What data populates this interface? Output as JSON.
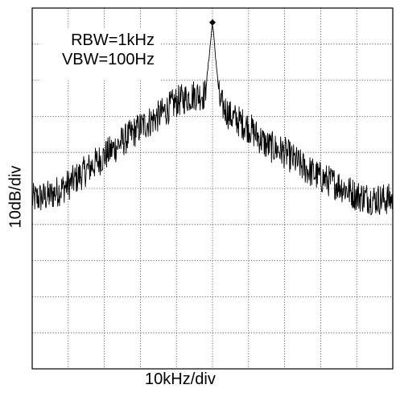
{
  "chart_data": {
    "type": "line",
    "xlabel": "10kHz/div",
    "ylabel": "10dB/div",
    "annotations": [
      "RBW=1kHz",
      "VBW=100Hz"
    ],
    "grid": true,
    "x_divisions": 10,
    "y_divisions": 10,
    "xlim": [
      -50,
      50
    ],
    "x_unit": "kHz",
    "y_unit": "dB",
    "ylim": [
      -100,
      0
    ],
    "series": [
      {
        "x": [
          -50,
          -45,
          -40,
          -35,
          -30,
          -25,
          -20,
          -15,
          -10,
          -5,
          -2,
          0,
          2,
          5,
          10,
          15,
          20,
          25,
          30,
          35,
          40,
          45,
          50
        ],
        "values": [
          -53,
          -52,
          -49,
          -45,
          -41,
          -37,
          -33,
          -30,
          -26,
          -24,
          -24,
          -4,
          -26,
          -30,
          -33,
          -38,
          -40,
          -44,
          -47,
          -49,
          -52,
          -53,
          -53
        ]
      }
    ],
    "peak_marker": {
      "x": 0,
      "y": -4
    }
  }
}
